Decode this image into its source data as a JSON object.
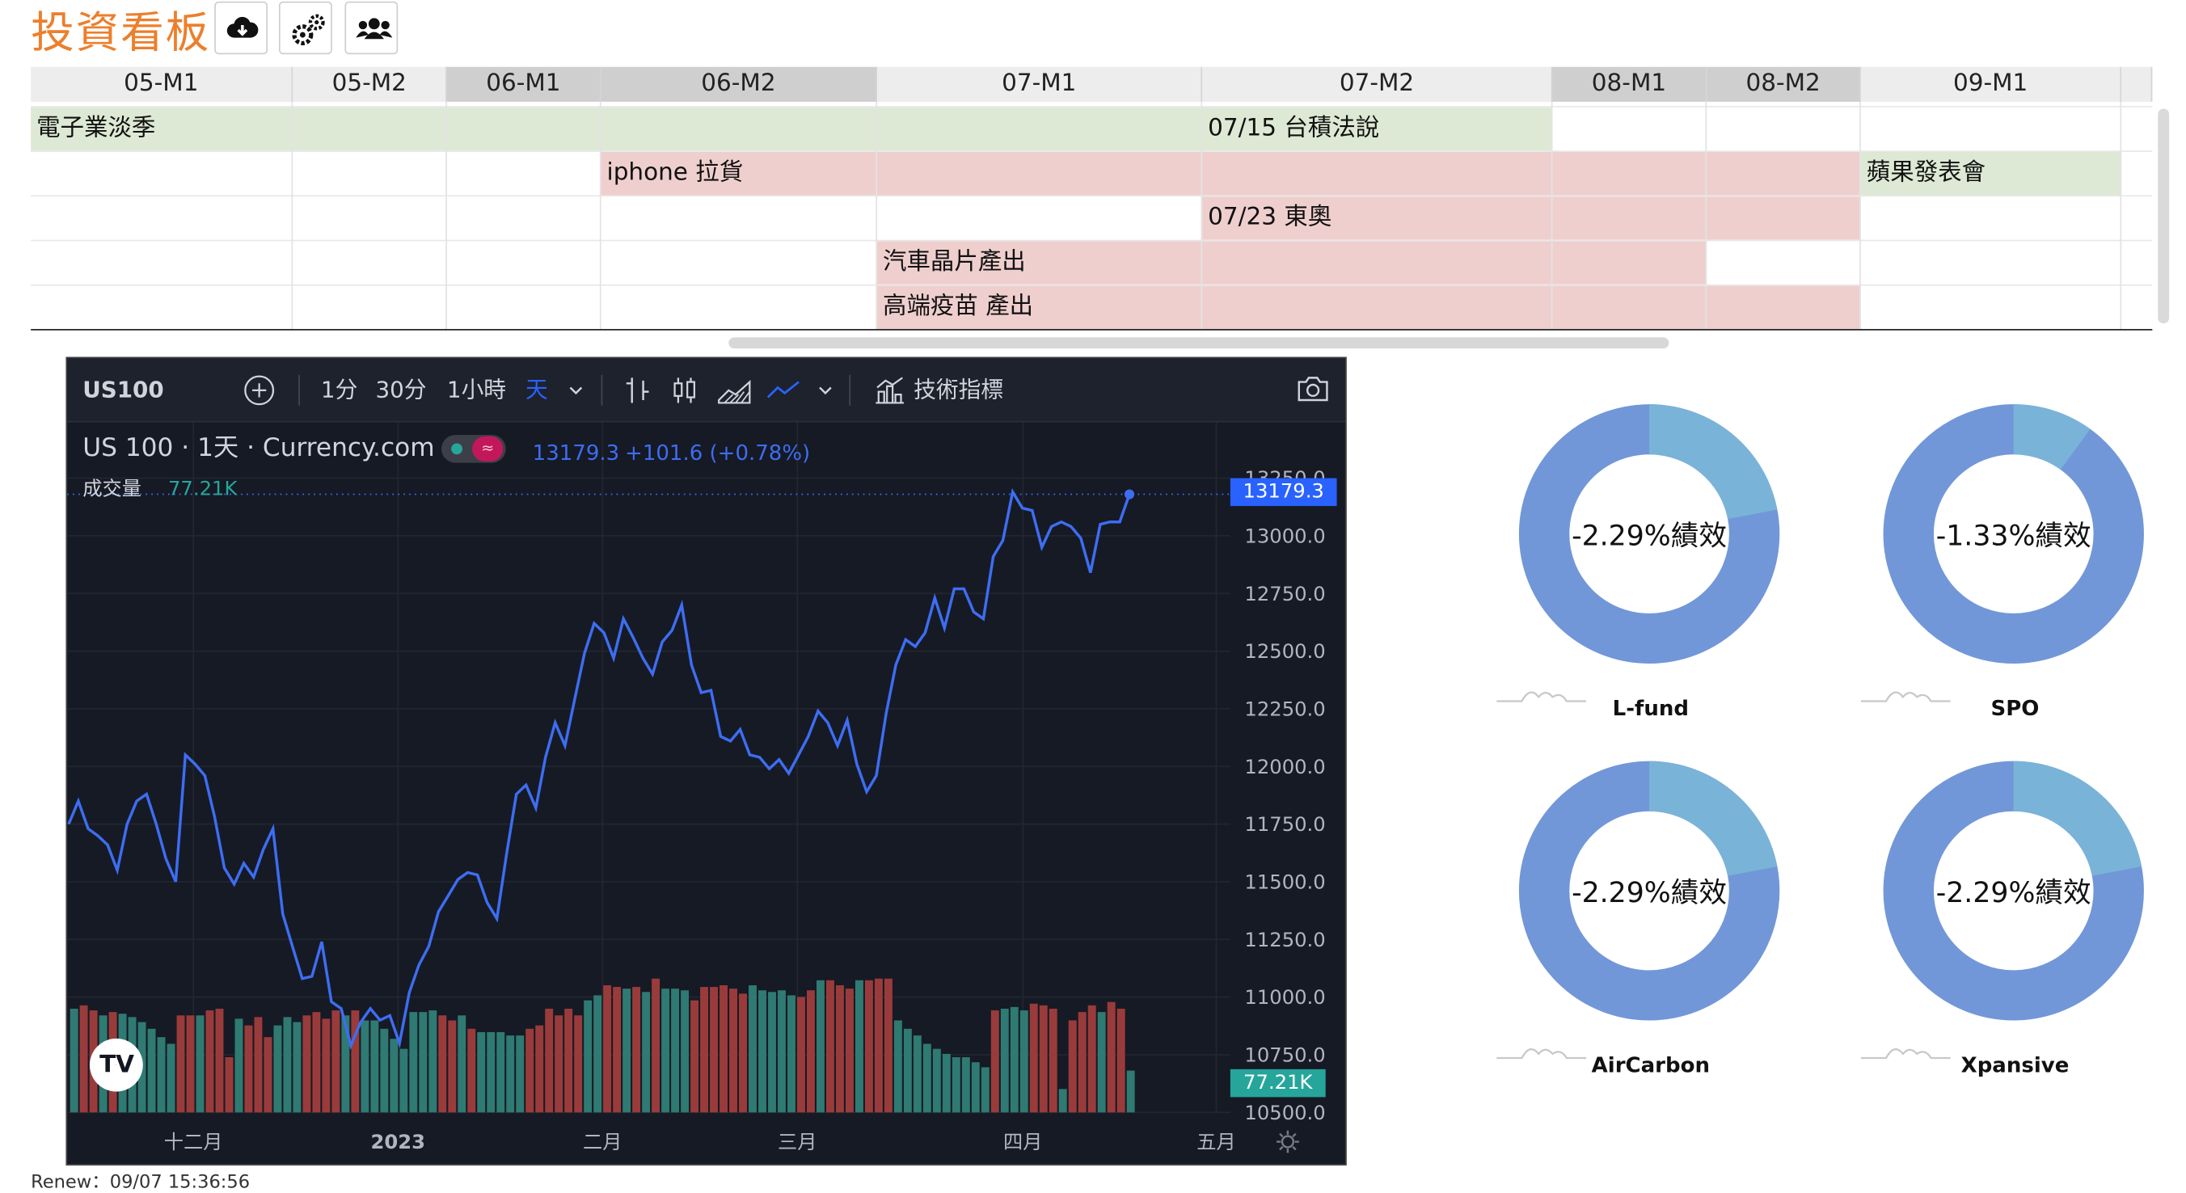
{
  "app": {
    "title": "投資看板",
    "toolbar_icons": [
      "cloud-download-icon",
      "gears-icon",
      "users-icon"
    ]
  },
  "timeline": {
    "headers": [
      "05-M1",
      "05-M2",
      "06-M1",
      "06-M2",
      "07-M1",
      "07-M2",
      "08-M1",
      "08-M2",
      "09-M1"
    ],
    "events": [
      {
        "label": "電子業淡季",
        "color": "#dde9d4"
      },
      {
        "label": "07/15 台積法說",
        "color": "#dde9d4"
      },
      {
        "label": "iphone 拉貨",
        "color": "#efcfce"
      },
      {
        "label": "蘋果發表會",
        "color": "#dde9d4"
      },
      {
        "label": "07/23 東奧",
        "color": "#efcfce"
      },
      {
        "label": "汽車晶片產出",
        "color": "#efcfce"
      },
      {
        "label": "高端疫苗 產出",
        "color": "#efcfce"
      }
    ]
  },
  "tradingview": {
    "symbol": "US100",
    "intervals": [
      "1分",
      "30分",
      "1小時",
      "天"
    ],
    "active_interval": "天",
    "indicators_label": "技術指標",
    "legend_title": "US 100 · 1天 · Currency.com",
    "legend_price": "13179.3",
    "legend_change": "+101.6 (+0.78%)",
    "volume_label": "成交量",
    "volume_value": "77.21K",
    "price_tag": "13179.3",
    "volume_tag": "77.21K",
    "x_labels": [
      "十二月",
      "2023",
      "二月",
      "三月",
      "四月",
      "五月"
    ],
    "y_labels": [
      "13250.0",
      "13000.0",
      "12750.0",
      "12500.0",
      "12250.0",
      "12000.0",
      "11750.0",
      "11500.0",
      "11250.0",
      "11000.0",
      "10750.0",
      "10500.0"
    ],
    "chart_data": {
      "type": "line",
      "ylim": [
        10500,
        13250
      ],
      "values": [
        11750,
        11850,
        11730,
        11700,
        11660,
        11550,
        11750,
        11850,
        11880,
        11750,
        11600,
        11500,
        12050,
        12010,
        11960,
        11780,
        11560,
        11490,
        11580,
        11520,
        11640,
        11730,
        11360,
        11220,
        11080,
        11090,
        11240,
        10980,
        10950,
        10790,
        10890,
        10950,
        10900,
        10920,
        10800,
        11020,
        11140,
        11220,
        11370,
        11440,
        11510,
        11540,
        11530,
        11410,
        11340,
        11620,
        11880,
        11920,
        11820,
        12040,
        12190,
        12090,
        12290,
        12490,
        12620,
        12580,
        12470,
        12640,
        12560,
        12470,
        12400,
        12540,
        12590,
        12700,
        12440,
        12320,
        12330,
        12130,
        12110,
        12160,
        12050,
        12040,
        11990,
        12030,
        11970,
        12050,
        12130,
        12240,
        12190,
        12090,
        12200,
        12010,
        11890,
        11960,
        12230,
        12440,
        12550,
        12520,
        12580,
        12730,
        12600,
        12770,
        12770,
        12670,
        12640,
        12910,
        12980,
        13190,
        13120,
        13110,
        12950,
        13040,
        13060,
        13040,
        12990,
        12840,
        13050,
        13060,
        13060,
        13180
      ],
      "volume": [
        {
          "v": 0.62,
          "up": true
        },
        {
          "v": 0.64,
          "up": false
        },
        {
          "v": 0.61,
          "up": false
        },
        {
          "v": 0.58,
          "up": true
        },
        {
          "v": 0.6,
          "up": false
        },
        {
          "v": 0.59,
          "up": true
        },
        {
          "v": 0.57,
          "up": true
        },
        {
          "v": 0.54,
          "up": true
        },
        {
          "v": 0.5,
          "up": true
        },
        {
          "v": 0.45,
          "up": true
        },
        {
          "v": 0.41,
          "up": true
        },
        {
          "v": 0.58,
          "up": false
        },
        {
          "v": 0.58,
          "up": false
        },
        {
          "v": 0.58,
          "up": true
        },
        {
          "v": 0.61,
          "up": false
        },
        {
          "v": 0.62,
          "up": false
        },
        {
          "v": 0.33,
          "up": false
        },
        {
          "v": 0.56,
          "up": true
        },
        {
          "v": 0.52,
          "up": false
        },
        {
          "v": 0.57,
          "up": false
        },
        {
          "v": 0.45,
          "up": false
        },
        {
          "v": 0.52,
          "up": true
        },
        {
          "v": 0.57,
          "up": true
        },
        {
          "v": 0.54,
          "up": true
        },
        {
          "v": 0.58,
          "up": false
        },
        {
          "v": 0.6,
          "up": false
        },
        {
          "v": 0.56,
          "up": false
        },
        {
          "v": 0.61,
          "up": false
        },
        {
          "v": 0.58,
          "up": true
        },
        {
          "v": 0.61,
          "up": false
        },
        {
          "v": 0.55,
          "up": true
        },
        {
          "v": 0.55,
          "up": true
        },
        {
          "v": 0.5,
          "up": true
        },
        {
          "v": 0.44,
          "up": true
        },
        {
          "v": 0.38,
          "up": true
        },
        {
          "v": 0.6,
          "up": true
        },
        {
          "v": 0.6,
          "up": true
        },
        {
          "v": 0.61,
          "up": true
        },
        {
          "v": 0.58,
          "up": false
        },
        {
          "v": 0.55,
          "up": false
        },
        {
          "v": 0.58,
          "up": true
        },
        {
          "v": 0.5,
          "up": false
        },
        {
          "v": 0.48,
          "up": true
        },
        {
          "v": 0.48,
          "up": true
        },
        {
          "v": 0.48,
          "up": true
        },
        {
          "v": 0.46,
          "up": true
        },
        {
          "v": 0.46,
          "up": true
        },
        {
          "v": 0.5,
          "up": false
        },
        {
          "v": 0.52,
          "up": false
        },
        {
          "v": 0.62,
          "up": false
        },
        {
          "v": 0.58,
          "up": false
        },
        {
          "v": 0.62,
          "up": false
        },
        {
          "v": 0.58,
          "up": false
        },
        {
          "v": 0.67,
          "up": true
        },
        {
          "v": 0.7,
          "up": true
        },
        {
          "v": 0.76,
          "up": false
        },
        {
          "v": 0.75,
          "up": false
        },
        {
          "v": 0.74,
          "up": true
        },
        {
          "v": 0.75,
          "up": false
        },
        {
          "v": 0.72,
          "up": true
        },
        {
          "v": 0.8,
          "up": false
        },
        {
          "v": 0.74,
          "up": true
        },
        {
          "v": 0.74,
          "up": true
        },
        {
          "v": 0.73,
          "up": true
        },
        {
          "v": 0.67,
          "up": false
        },
        {
          "v": 0.75,
          "up": false
        },
        {
          "v": 0.75,
          "up": false
        },
        {
          "v": 0.76,
          "up": false
        },
        {
          "v": 0.74,
          "up": false
        },
        {
          "v": 0.71,
          "up": false
        },
        {
          "v": 0.76,
          "up": true
        },
        {
          "v": 0.73,
          "up": true
        },
        {
          "v": 0.72,
          "up": true
        },
        {
          "v": 0.73,
          "up": true
        },
        {
          "v": 0.7,
          "up": true
        },
        {
          "v": 0.69,
          "up": false
        },
        {
          "v": 0.73,
          "up": false
        },
        {
          "v": 0.79,
          "up": true
        },
        {
          "v": 0.79,
          "up": false
        },
        {
          "v": 0.76,
          "up": false
        },
        {
          "v": 0.74,
          "up": false
        },
        {
          "v": 0.79,
          "up": true
        },
        {
          "v": 0.79,
          "up": false
        },
        {
          "v": 0.8,
          "up": false
        },
        {
          "v": 0.8,
          "up": false
        },
        {
          "v": 0.55,
          "up": true
        },
        {
          "v": 0.5,
          "up": true
        },
        {
          "v": 0.46,
          "up": true
        },
        {
          "v": 0.41,
          "up": true
        },
        {
          "v": 0.38,
          "up": true
        },
        {
          "v": 0.35,
          "up": true
        },
        {
          "v": 0.33,
          "up": true
        },
        {
          "v": 0.33,
          "up": true
        },
        {
          "v": 0.3,
          "up": true
        },
        {
          "v": 0.27,
          "up": true
        },
        {
          "v": 0.61,
          "up": false
        },
        {
          "v": 0.62,
          "up": true
        },
        {
          "v": 0.63,
          "up": true
        },
        {
          "v": 0.61,
          "up": true
        },
        {
          "v": 0.65,
          "up": false
        },
        {
          "v": 0.64,
          "up": false
        },
        {
          "v": 0.62,
          "up": false
        },
        {
          "v": 0.14,
          "up": true
        },
        {
          "v": 0.55,
          "up": false
        },
        {
          "v": 0.6,
          "up": false
        },
        {
          "v": 0.64,
          "up": false
        },
        {
          "v": 0.6,
          "up": true
        },
        {
          "v": 0.66,
          "up": false
        },
        {
          "v": 0.62,
          "up": false
        },
        {
          "v": 0.25,
          "up": true
        }
      ]
    }
  },
  "funds": [
    {
      "name": "L-fund",
      "perf": "-2.29%績效",
      "share": 0.22
    },
    {
      "name": "SPO",
      "perf": "-1.33%績效",
      "share": 0.1
    },
    {
      "name": "AirCarbon",
      "perf": "-2.29%績效",
      "share": 0.22
    },
    {
      "name": "Xpansive",
      "perf": "-2.29%績效",
      "share": 0.22
    }
  ],
  "colors": {
    "donut_main": "#7297d8",
    "donut_slice": "#7ab3d8",
    "line": "#3d6df2",
    "vol_up": "#2f7a72",
    "vol_down": "#9a3b3b"
  },
  "footer": {
    "renew": "Renew：09/07 15:36:56"
  }
}
